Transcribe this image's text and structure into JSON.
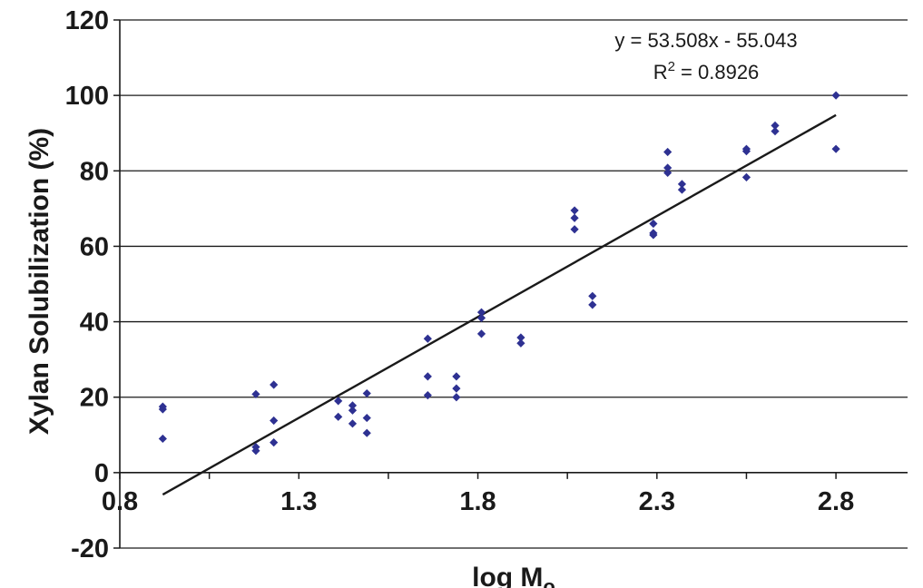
{
  "chart_data": {
    "type": "scatter",
    "title": "",
    "xlabel": "log M",
    "xlabel_subscript": "o",
    "ylabel": "Xylan Solubilization (%)",
    "xlim": [
      0.8,
      3.0
    ],
    "ylim": [
      -20,
      120
    ],
    "xticks": [
      0.8,
      1.3,
      1.8,
      2.3,
      2.8
    ],
    "xtick_labels": [
      "0.8",
      "1.3",
      "1.8",
      "2.3",
      "2.8"
    ],
    "yticks": [
      -20,
      0,
      20,
      40,
      60,
      80,
      100,
      120
    ],
    "ytick_labels": [
      "-20",
      "0",
      "20",
      "40",
      "60",
      "80",
      "100",
      "120"
    ],
    "grid": "horizontal",
    "marker_color": "#2e3192",
    "line_color": "#1a1a1a",
    "points": [
      [
        0.92,
        17.5
      ],
      [
        0.92,
        16.8
      ],
      [
        0.92,
        9.0
      ],
      [
        1.18,
        20.8
      ],
      [
        1.18,
        6.8
      ],
      [
        1.18,
        5.8
      ],
      [
        1.23,
        23.3
      ],
      [
        1.23,
        13.8
      ],
      [
        1.23,
        8.0
      ],
      [
        1.41,
        19.0
      ],
      [
        1.41,
        14.8
      ],
      [
        1.45,
        17.8
      ],
      [
        1.45,
        16.5
      ],
      [
        1.45,
        13.0
      ],
      [
        1.49,
        21.0
      ],
      [
        1.49,
        14.5
      ],
      [
        1.49,
        10.5
      ],
      [
        1.66,
        35.5
      ],
      [
        1.66,
        25.5
      ],
      [
        1.66,
        20.5
      ],
      [
        1.74,
        25.5
      ],
      [
        1.74,
        22.3
      ],
      [
        1.74,
        20.0
      ],
      [
        1.81,
        42.5
      ],
      [
        1.81,
        41.0
      ],
      [
        1.81,
        36.8
      ],
      [
        1.92,
        35.8
      ],
      [
        1.92,
        34.3
      ],
      [
        2.07,
        69.5
      ],
      [
        2.07,
        67.5
      ],
      [
        2.07,
        64.5
      ],
      [
        2.12,
        46.8
      ],
      [
        2.12,
        44.5
      ],
      [
        2.29,
        66.0
      ],
      [
        2.29,
        63.5
      ],
      [
        2.29,
        63.0
      ],
      [
        2.33,
        85.0
      ],
      [
        2.33,
        80.8
      ],
      [
        2.33,
        79.5
      ],
      [
        2.37,
        76.5
      ],
      [
        2.37,
        75.0
      ],
      [
        2.55,
        85.8
      ],
      [
        2.55,
        85.2
      ],
      [
        2.55,
        78.3
      ],
      [
        2.63,
        92.0
      ],
      [
        2.63,
        90.5
      ],
      [
        2.8,
        100.0
      ],
      [
        2.8,
        85.8
      ]
    ],
    "trendline": {
      "slope": 53.508,
      "intercept": -55.043,
      "x_range": [
        0.92,
        2.8
      ],
      "equation": "y = 53.508x - 55.043",
      "r2_prefix": "R",
      "r2_sup": "2",
      "r2_value": " = 0.8926"
    }
  }
}
